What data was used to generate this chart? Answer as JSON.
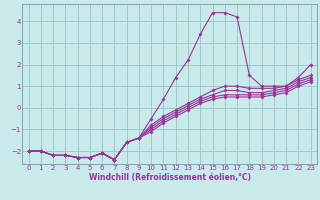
{
  "xlabel": "Windchill (Refroidissement éolien,°C)",
  "background_color": "#c8eaea",
  "grid_color": "#a0c8c8",
  "line_color": "#993399",
  "spine_color": "#7799aa",
  "xlim": [
    -0.5,
    23.5
  ],
  "ylim": [
    -2.6,
    4.8
  ],
  "xticks": [
    0,
    1,
    2,
    3,
    4,
    5,
    6,
    7,
    8,
    9,
    10,
    11,
    12,
    13,
    14,
    15,
    16,
    17,
    18,
    19,
    20,
    21,
    22,
    23
  ],
  "yticks": [
    -2,
    -1,
    0,
    1,
    2,
    3,
    4
  ],
  "series": [
    {
      "x": [
        0,
        1,
        2,
        3,
        4,
        5,
        6,
        7,
        8,
        9,
        10,
        11,
        12,
        13,
        14,
        15,
        16,
        17,
        18,
        19,
        20,
        21,
        22,
        23
      ],
      "y": [
        -2.0,
        -2.0,
        -2.2,
        -2.2,
        -2.3,
        -2.3,
        -2.1,
        -2.4,
        -1.6,
        -1.4,
        -0.5,
        0.4,
        1.4,
        2.2,
        3.4,
        4.4,
        4.4,
        4.2,
        1.5,
        1.0,
        1.0,
        1.0,
        1.4,
        2.0
      ]
    },
    {
      "x": [
        0,
        1,
        2,
        3,
        4,
        5,
        6,
        7,
        8,
        9,
        10,
        11,
        12,
        13,
        14,
        15,
        16,
        17,
        18,
        19,
        20,
        21,
        22,
        23
      ],
      "y": [
        -2.0,
        -2.0,
        -2.2,
        -2.2,
        -2.3,
        -2.3,
        -2.1,
        -2.4,
        -1.6,
        -1.4,
        -0.8,
        -0.4,
        -0.1,
        0.2,
        0.5,
        0.8,
        1.0,
        1.0,
        0.9,
        0.9,
        0.9,
        1.0,
        1.3,
        1.5
      ]
    },
    {
      "x": [
        0,
        1,
        2,
        3,
        4,
        5,
        6,
        7,
        8,
        9,
        10,
        11,
        12,
        13,
        14,
        15,
        16,
        17,
        18,
        19,
        20,
        21,
        22,
        23
      ],
      "y": [
        -2.0,
        -2.0,
        -2.2,
        -2.2,
        -2.3,
        -2.3,
        -2.1,
        -2.4,
        -1.6,
        -1.4,
        -0.9,
        -0.5,
        -0.2,
        0.1,
        0.4,
        0.6,
        0.8,
        0.8,
        0.7,
        0.7,
        0.8,
        0.9,
        1.2,
        1.4
      ]
    },
    {
      "x": [
        0,
        1,
        2,
        3,
        4,
        5,
        6,
        7,
        8,
        9,
        10,
        11,
        12,
        13,
        14,
        15,
        16,
        17,
        18,
        19,
        20,
        21,
        22,
        23
      ],
      "y": [
        -2.0,
        -2.0,
        -2.2,
        -2.2,
        -2.3,
        -2.3,
        -2.1,
        -2.4,
        -1.6,
        -1.4,
        -1.0,
        -0.6,
        -0.3,
        0.0,
        0.3,
        0.5,
        0.6,
        0.6,
        0.6,
        0.6,
        0.7,
        0.8,
        1.1,
        1.3
      ]
    },
    {
      "x": [
        0,
        1,
        2,
        3,
        4,
        5,
        6,
        7,
        8,
        9,
        10,
        11,
        12,
        13,
        14,
        15,
        16,
        17,
        18,
        19,
        20,
        21,
        22,
        23
      ],
      "y": [
        -2.0,
        -2.0,
        -2.2,
        -2.2,
        -2.3,
        -2.3,
        -2.1,
        -2.4,
        -1.6,
        -1.4,
        -1.1,
        -0.7,
        -0.4,
        -0.1,
        0.2,
        0.4,
        0.5,
        0.5,
        0.5,
        0.5,
        0.6,
        0.7,
        1.0,
        1.2
      ]
    }
  ]
}
